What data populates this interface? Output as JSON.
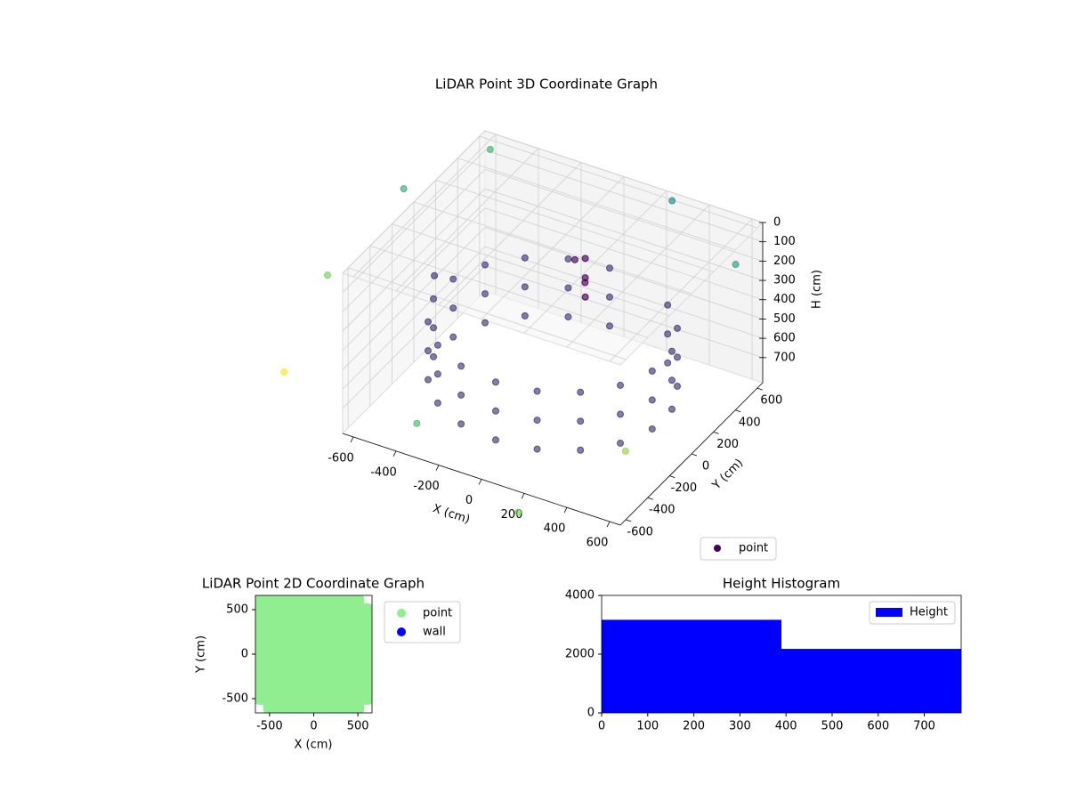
{
  "chart_data": [
    {
      "type": "scatter3d",
      "title": "LiDAR Point 3D Coordinate Graph",
      "xlabel": "X (cm)",
      "ylabel": "Y (cm)",
      "zlabel": "H (cm)",
      "xlim": [
        -650,
        650
      ],
      "ylim": [
        -650,
        650
      ],
      "zlim": [
        0,
        830
      ],
      "z_inverted": true,
      "xticks": [
        -600,
        -400,
        -200,
        0,
        200,
        400,
        600
      ],
      "yticks": [
        -600,
        -400,
        -200,
        0,
        200,
        400,
        600
      ],
      "zticks": [
        0,
        100,
        200,
        300,
        400,
        500,
        600,
        700
      ],
      "colormap": "viridis",
      "clim": [
        400,
        1100
      ],
      "grid": true,
      "legend": "lower right",
      "series": [
        {
          "name": "point",
          "color": "#440154",
          "x": [
            0,
            0,
            0,
            -178,
            -178,
            -178,
            -334,
            -334,
            -334,
            -450,
            -450,
            -450,
            -512,
            -512,
            -512,
            -512,
            -512,
            -512,
            -450,
            -450,
            -450,
            -334,
            -334,
            -334,
            -178,
            -178,
            -178,
            0,
            0,
            0,
            178,
            178,
            178,
            334,
            334,
            334,
            450,
            450,
            450,
            512,
            512,
            512,
            512,
            512,
            512,
            450,
            450,
            450,
            334,
            334,
            334,
            -900,
            -800,
            -950,
            300,
            -200,
            700,
            -600,
            200,
            600,
            -400,
            100,
            -50,
            50,
            50,
            50
          ],
          "y": [
            520,
            520,
            520,
            489,
            489,
            489,
            398,
            398,
            398,
            260,
            260,
            260,
            90,
            90,
            90,
            -90,
            -90,
            -90,
            -260,
            -260,
            -260,
            -398,
            -398,
            -398,
            -489,
            -489,
            -489,
            -520,
            -520,
            -520,
            -489,
            -489,
            -489,
            -398,
            -398,
            -398,
            -260,
            -260,
            -260,
            -90,
            -90,
            -90,
            90,
            90,
            90,
            260,
            260,
            260,
            398,
            398,
            398,
            -300,
            200,
            -600,
            -900,
            -850,
            -700,
            600,
            700,
            500,
            -300,
            100,
            300,
            200,
            200,
            200
          ],
          "z": [
            400,
            550,
            700,
            400,
            550,
            700,
            400,
            550,
            700,
            400,
            550,
            700,
            400,
            550,
            700,
            400,
            550,
            700,
            400,
            550,
            700,
            400,
            550,
            700,
            400,
            550,
            700,
            400,
            550,
            700,
            400,
            550,
            700,
            400,
            550,
            700,
            400,
            550,
            700,
            400,
            550,
            700,
            400,
            550,
            700,
            400,
            550,
            700,
            400,
            550,
            700,
            300,
            100,
            650,
            750,
            500,
            400,
            50,
            80,
            150,
            120,
            200,
            250,
            150,
            250,
            350
          ]
        }
      ]
    },
    {
      "type": "scatter",
      "title": "LiDAR Point 2D Coordinate Graph",
      "xlabel": "X (cm)",
      "ylabel": "Y (cm)",
      "xlim": [
        -660,
        660
      ],
      "ylim": [
        -660,
        660
      ],
      "xticks": [
        -500,
        0,
        500
      ],
      "yticks": [
        -500,
        0,
        500
      ],
      "legend": "outside upper right",
      "series": [
        {
          "name": "point",
          "color": "#90ee90",
          "x": [
            -600,
            -400,
            -200,
            0,
            200,
            400,
            -600,
            -400,
            -200,
            0,
            200,
            400,
            600,
            -600,
            -400,
            -200,
            0,
            200,
            400,
            600,
            -600,
            -400,
            -200,
            0,
            200,
            400,
            600,
            -600,
            -400,
            -200,
            0,
            200,
            400,
            600,
            -600,
            -400,
            -200,
            0,
            200,
            400,
            600,
            -400,
            -200,
            0,
            200,
            400
          ],
          "y": [
            600,
            600,
            600,
            600,
            600,
            600,
            400,
            400,
            400,
            400,
            400,
            400,
            400,
            200,
            200,
            200,
            200,
            200,
            200,
            200,
            0,
            0,
            0,
            0,
            0,
            0,
            0,
            -200,
            -200,
            -200,
            -200,
            -200,
            -200,
            -200,
            -400,
            -400,
            -400,
            -400,
            -400,
            -400,
            -400,
            -600,
            -600,
            -600,
            -600,
            -600
          ]
        },
        {
          "name": "wall",
          "color": "#0000ff",
          "x": [],
          "y": []
        }
      ]
    },
    {
      "type": "histogram",
      "title": "Height Histogram",
      "bins": [
        0,
        390,
        780
      ],
      "xlim": [
        0,
        780
      ],
      "ylim": [
        0,
        4000
      ],
      "xticks": [
        0,
        100,
        200,
        300,
        400,
        500,
        600,
        700
      ],
      "yticks": [
        0,
        2000,
        4000
      ],
      "legend": "upper right",
      "series": [
        {
          "name": "Height",
          "color": "#0000ff",
          "values": [
            3170,
            2180
          ]
        }
      ]
    }
  ]
}
